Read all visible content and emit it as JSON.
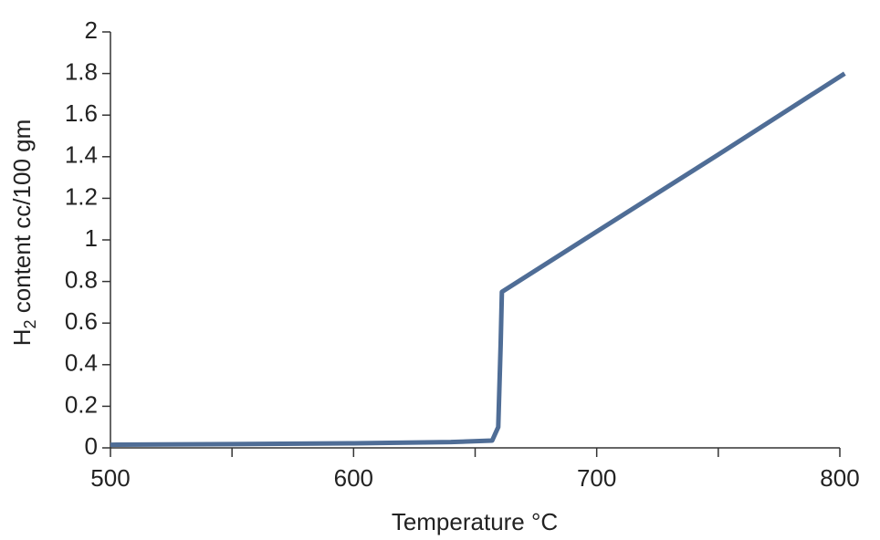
{
  "chart_data": {
    "type": "line",
    "ylabel": [
      "H",
      "2",
      " content cc/100 gm"
    ],
    "xlabel": "Temperature °C",
    "series": [
      {
        "color": "#4f6d96",
        "x": [
          500,
          550,
          600,
          640,
          657,
          659.5,
          660.5,
          661,
          700,
          750,
          802
        ],
        "values": [
          0.015,
          0.018,
          0.022,
          0.028,
          0.035,
          0.1,
          0.5,
          0.75,
          1.04,
          1.41,
          1.8
        ]
      }
    ],
    "xlim": [
      500,
      800
    ],
    "xticks": [
      500,
      600,
      700,
      800
    ],
    "xminorticks": [
      550,
      650,
      750
    ],
    "ylim": [
      0,
      2
    ],
    "yticks": [
      0,
      0.2,
      0.4,
      0.6,
      0.8,
      1,
      1.2,
      1.4,
      1.6,
      1.8,
      2
    ]
  }
}
